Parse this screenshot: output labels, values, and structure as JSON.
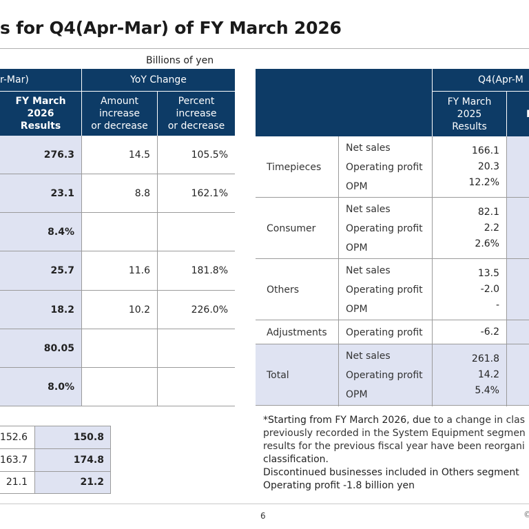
{
  "title": "s for Q4(Apr-Mar) of FY March 2026",
  "unit": "Billions of yen",
  "left_table": {
    "header_group": "r-Mar)",
    "yoy_header": "YoY Change",
    "col_results": "FY March\n2026\nResults",
    "col_amount": "Amount\nincrease\nor decrease",
    "col_percent": "Percent\nincrease\nor decrease",
    "rows": [
      {
        "results": "276.3",
        "amount": "14.5",
        "percent": "105.5%"
      },
      {
        "results": "23.1",
        "amount": "8.8",
        "percent": "162.1%"
      },
      {
        "results": "8.4%",
        "amount": "",
        "percent": ""
      },
      {
        "results": "25.7",
        "amount": "11.6",
        "percent": "181.8%"
      },
      {
        "results": "18.2",
        "amount": "10.2",
        "percent": "226.0%"
      },
      {
        "results": "80.05",
        "amount": "",
        "percent": ""
      },
      {
        "results": "8.0%",
        "amount": "",
        "percent": ""
      }
    ]
  },
  "fx_table": {
    "rows": [
      {
        "prev": "152.6",
        "curr": "150.8"
      },
      {
        "prev": "163.7",
        "curr": "174.8"
      },
      {
        "prev": "21.1",
        "curr": "21.2"
      }
    ]
  },
  "right_table": {
    "header_group": "Q4(Apr-M",
    "col_prev": "FY March\n2025\nResults",
    "col_curr_partial": "F",
    "segments": [
      {
        "name": "Timepieces",
        "metrics": [
          "Net sales",
          "Operating profit",
          "OPM"
        ],
        "values": [
          "166.1",
          "20.3",
          "12.2%"
        ]
      },
      {
        "name": "Consumer",
        "metrics": [
          "Net sales",
          "Operating profit",
          "OPM"
        ],
        "values": [
          "82.1",
          "2.2",
          "2.6%"
        ]
      },
      {
        "name": "Others",
        "metrics": [
          "Net sales",
          "Operating profit",
          "OPM"
        ],
        "values": [
          "13.5",
          "-2.0",
          "-"
        ]
      },
      {
        "name": "Adjustments",
        "metrics": [
          "Operating profit"
        ],
        "values": [
          "-6.2"
        ]
      },
      {
        "name": "Total",
        "metrics": [
          "Net sales",
          "Operating profit",
          "OPM"
        ],
        "values": [
          "261.8",
          "14.2",
          "5.4%"
        ]
      }
    ]
  },
  "notes": {
    "line1_a": "*Starting from FY March 2026, due",
    "line1_b": " to a change in clas",
    "line2": "previously recorded in the System Equipment segmen",
    "line3": "results for the previous fiscal year have been reorgani",
    "line4": "classification.",
    "line5": "Discontinued businesses included in Others segment",
    "line6": "Operating profit -1.8 billion yen"
  },
  "footer": {
    "page_number": "6",
    "copyright": "©"
  }
}
